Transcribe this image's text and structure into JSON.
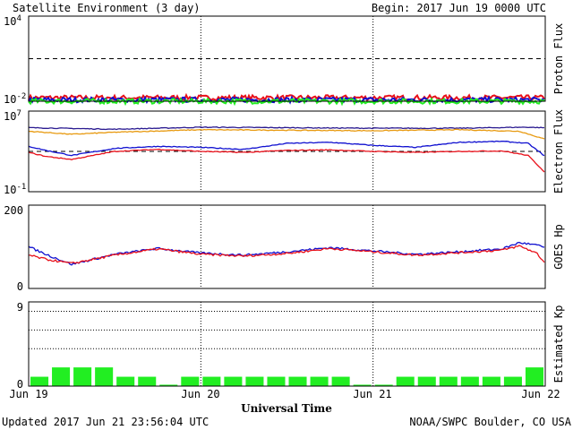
{
  "header": {
    "title": "Satellite Environment (3 day)",
    "begin": "Begin:  2017 Jun 19 0000 UTC"
  },
  "footer": {
    "updated": "Updated 2017 Jun 21 23:56:04 UTC",
    "credit": "NOAA/SWPC Boulder, CO USA"
  },
  "x_axis": {
    "label": "Universal Time",
    "ticks": [
      "Jun 19",
      "Jun 20",
      "Jun 21",
      "Jun 22"
    ]
  },
  "colors": {
    "red": "#e8101a",
    "blue": "#1010d0",
    "green": "#22ee22",
    "orange": "#e89a10",
    "navy": "#2a1a90",
    "frame": "#000000"
  },
  "chart_data": [
    {
      "type": "line",
      "ylabel": "Proton Flux",
      "yscale": "log",
      "ylim_exp": [
        -2,
        4
      ],
      "y_ticks": [
        {
          "base": "10",
          "exp": "4"
        },
        {
          "base": "10",
          "exp": "-2"
        }
      ],
      "threshold_exp": 1,
      "series": [
        {
          "color": "red",
          "log10_level": -1.75
        },
        {
          "color": "blue",
          "log10_level": -1.9
        },
        {
          "color": "green",
          "log10_level": -2.0
        }
      ]
    },
    {
      "type": "line",
      "ylabel": "Electron Flux",
      "yscale": "log",
      "ylim_exp": [
        -1,
        7
      ],
      "y_ticks": [
        {
          "base": "10",
          "exp": "7"
        },
        {
          "base": "10",
          "exp": "-1"
        }
      ],
      "threshold_exp": 3,
      "series": [
        {
          "color": "navy",
          "x_days": [
            0,
            0.5,
            1,
            1.5,
            2,
            2.5,
            2.88,
            3
          ],
          "log10": [
            5.35,
            5.2,
            5.4,
            5.35,
            5.3,
            5.3,
            5.4,
            5.35
          ]
        },
        {
          "color": "orange",
          "x_days": [
            0,
            0.25,
            0.5,
            1,
            1.5,
            2,
            2.5,
            2.85,
            3
          ],
          "log10": [
            5.0,
            4.7,
            4.9,
            5.15,
            5.1,
            5.05,
            5.15,
            5.0,
            4.2
          ]
        },
        {
          "color": "blue",
          "x_days": [
            0,
            0.1,
            0.25,
            0.5,
            0.75,
            1,
            1.25,
            1.5,
            1.75,
            2,
            2.25,
            2.5,
            2.75,
            2.9,
            3
          ],
          "log10": [
            3.5,
            3.1,
            2.6,
            3.3,
            3.5,
            3.4,
            3.2,
            3.8,
            3.9,
            3.6,
            3.4,
            3.9,
            4.0,
            3.8,
            2.5
          ]
        },
        {
          "color": "red",
          "x_days": [
            0,
            0.1,
            0.25,
            0.5,
            0.75,
            1,
            1.25,
            1.5,
            1.75,
            2,
            2.25,
            2.5,
            2.75,
            2.9,
            3
          ],
          "log10": [
            2.9,
            2.5,
            2.2,
            3.0,
            3.2,
            3.0,
            2.9,
            3.1,
            3.15,
            3.0,
            2.9,
            3.0,
            3.05,
            2.6,
            0.9
          ]
        }
      ]
    },
    {
      "type": "line",
      "ylabel": "GOES Hp",
      "ylim": [
        0,
        200
      ],
      "y_ticks": [
        "200",
        "0"
      ],
      "series": [
        {
          "color": "blue",
          "x_days": [
            0,
            0.1,
            0.25,
            0.5,
            0.75,
            1,
            1.25,
            1.5,
            1.75,
            2,
            2.25,
            2.5,
            2.75,
            2.85,
            2.95,
            3
          ],
          "values": [
            100,
            82,
            58,
            82,
            96,
            85,
            80,
            88,
            98,
            90,
            82,
            88,
            95,
            110,
            104,
            98
          ]
        },
        {
          "color": "red",
          "x_days": [
            0,
            0.1,
            0.25,
            0.5,
            0.75,
            1,
            1.25,
            1.5,
            1.75,
            2,
            2.25,
            2.5,
            2.75,
            2.85,
            2.95,
            3
          ],
          "values": [
            80,
            70,
            60,
            80,
            95,
            82,
            78,
            84,
            96,
            88,
            80,
            86,
            92,
            102,
            85,
            60
          ]
        }
      ]
    },
    {
      "type": "bar",
      "ylabel": "Estimated Kp",
      "ylim": [
        0,
        9
      ],
      "y_ticks": [
        "9",
        "0"
      ],
      "bar_color": "green",
      "kp_values": [
        1,
        2,
        2,
        2,
        1,
        1,
        0,
        1,
        1,
        1,
        1,
        1,
        1,
        1,
        1,
        0,
        0,
        1,
        1,
        1,
        1,
        1,
        1,
        2
      ]
    }
  ]
}
